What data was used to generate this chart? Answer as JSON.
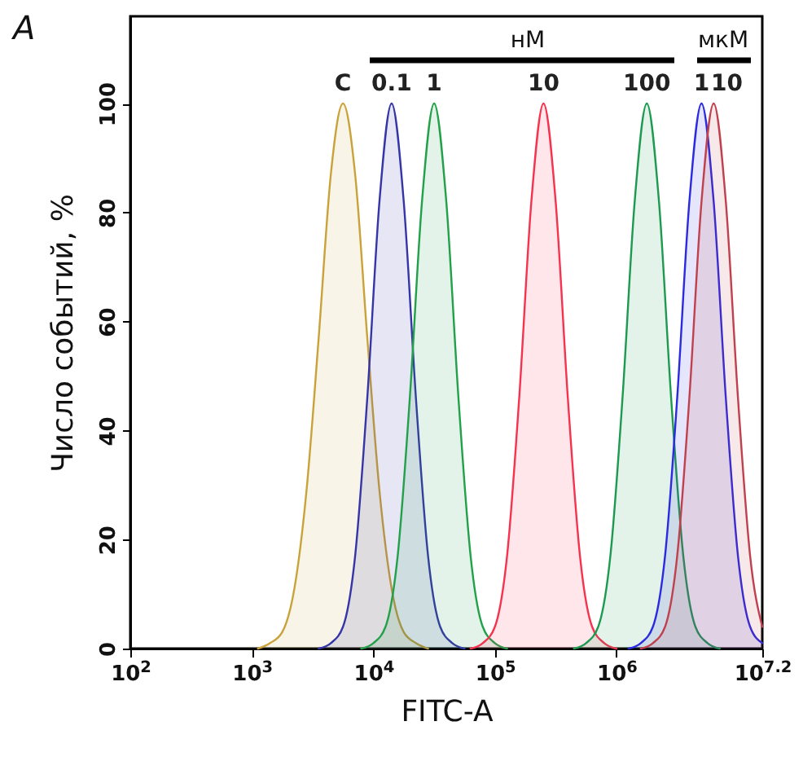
{
  "chart_data": {
    "type": "area",
    "xlabel": "FITC-A",
    "ylabel": "Число событий, %",
    "log": "x",
    "grid": false,
    "xlim": [
      100,
      15849000
    ],
    "ylim": [
      0,
      116
    ],
    "xticks": [
      {
        "value": 100,
        "label": "10$^{2}$"
      },
      {
        "value": 1000,
        "label": "10$^{3}$"
      },
      {
        "value": 10000,
        "label": "10$^{4}$"
      },
      {
        "value": 100000,
        "label": "10$^{5}$"
      },
      {
        "value": 1000000,
        "label": "10$^{6}$"
      },
      {
        "value": 15849000,
        "label": "10$^{7.2}$"
      }
    ],
    "yticks": [
      0,
      20,
      40,
      60,
      80,
      100
    ],
    "annotations": [
      "A",
      "нМ",
      "мкМ"
    ],
    "series": [
      {
        "name": "C",
        "color": "#c9a23a",
        "x": [
          1122,
          1413,
          1778,
          2239,
          2818,
          3548,
          4467,
          5623,
          7079,
          8913,
          11220,
          14130,
          17780,
          22390,
          28180
        ],
        "values": [
          0,
          1,
          3,
          11,
          29,
          57,
          87,
          100,
          87,
          57,
          29,
          11,
          3,
          1,
          0
        ]
      },
      {
        "name": "0.1",
        "color": "#3535a8",
        "x": [
          3548,
          4467,
          5623,
          7079,
          8913,
          11220,
          14130,
          17780,
          22390,
          28180,
          35480,
          44670,
          56230
        ],
        "values": [
          0,
          1,
          4,
          17,
          46,
          82,
          100,
          82,
          46,
          17,
          4,
          1,
          0
        ]
      },
      {
        "name": "1",
        "color": "#22a04a",
        "x": [
          7943,
          10000,
          12590,
          15850,
          19950,
          25120,
          31620,
          39810,
          50120,
          63100,
          79430,
          100000,
          125900
        ],
        "values": [
          0,
          1,
          4,
          17,
          46,
          82,
          100,
          82,
          46,
          17,
          4,
          1,
          0
        ]
      },
      {
        "name": "10",
        "color": "#f5334f",
        "x": [
          63100,
          79430,
          100000,
          125900,
          158500,
          199500,
          251200,
          316200,
          398100,
          501200,
          631000,
          794300,
          1000000
        ],
        "values": [
          0,
          1,
          4,
          17,
          46,
          82,
          100,
          82,
          46,
          17,
          4,
          1,
          0
        ]
      },
      {
        "name": "100",
        "color": "#1e9a50",
        "x": [
          446700,
          562300,
          707900,
          891300,
          1122000,
          1413000,
          1778000,
          2239000,
          2818000,
          3548000,
          4467000,
          5623000,
          7079000
        ],
        "values": [
          0,
          1,
          4,
          17,
          46,
          82,
          100,
          82,
          46,
          17,
          4,
          1,
          0
        ]
      },
      {
        "name": "1",
        "color": "#2a2ae0",
        "x": [
          1259000,
          1585000,
          1995000,
          2512000,
          3162000,
          3981000,
          5012000,
          6310000,
          7943000,
          10000000,
          12590000,
          15849000
        ],
        "values": [
          0,
          1,
          4,
          17,
          46,
          82,
          100,
          82,
          46,
          17,
          4,
          1
        ]
      },
      {
        "name": "10",
        "color": "#c0404e",
        "x": [
          1585000,
          1995000,
          2512000,
          3162000,
          3981000,
          5012000,
          6310000,
          7943000,
          10000000,
          12590000,
          15849000
        ],
        "values": [
          0,
          1,
          4,
          17,
          46,
          82,
          100,
          82,
          46,
          17,
          4
        ]
      }
    ]
  }
}
